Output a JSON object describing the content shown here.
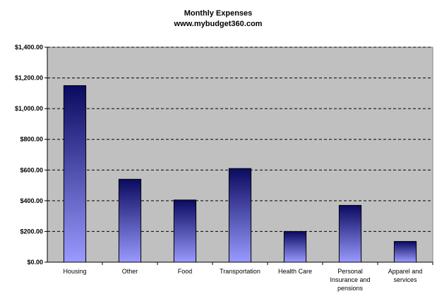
{
  "chart_data": {
    "type": "bar",
    "title": "Monthly Expenses",
    "subtitle": "www.mybudget360.com",
    "xlabel": "",
    "ylabel": "",
    "categories": [
      "Housing",
      "Other",
      "Food",
      "Transportation",
      "Health Care",
      "Personal Insurance and pensions",
      "Apparel and services"
    ],
    "category_lines": [
      [
        "Housing"
      ],
      [
        "Other"
      ],
      [
        "Food"
      ],
      [
        "Transportation"
      ],
      [
        "Health Care"
      ],
      [
        "Personal",
        "Insurance and",
        "pensions"
      ],
      [
        "Apparel and",
        "services"
      ]
    ],
    "values": [
      1150,
      540,
      405,
      610,
      200,
      370,
      135
    ],
    "ylim": [
      0,
      1400
    ],
    "y_ticks": [
      0,
      200,
      400,
      600,
      800,
      1000,
      1200,
      1400
    ],
    "y_tick_labels": [
      "$0.00",
      "$200.00",
      "$400.00",
      "$600.00",
      "$800.00",
      "$1,000.00",
      "$1,200.00",
      "$1,400.00"
    ],
    "grid": true,
    "legend": "none",
    "colors": {
      "plot_bg": "#c0c0c0",
      "bar_top": "#0a0a60",
      "bar_bottom": "#9a9aff",
      "grid": "#000000"
    }
  }
}
